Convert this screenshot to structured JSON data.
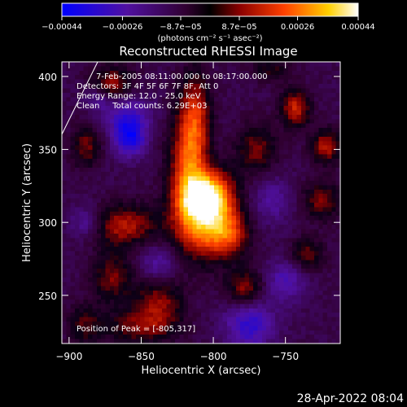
{
  "chart_data": {
    "type": "heatmap",
    "title": "Reconstructed RHESSI Image",
    "xlabel": "Heliocentric X (arcsec)",
    "ylabel": "Heliocentric Y (arcsec)",
    "xlim": [
      -905,
      -712
    ],
    "ylim": [
      217,
      410
    ],
    "xticks": [
      -900,
      -850,
      -800,
      -750
    ],
    "yticks": [
      250,
      300,
      350,
      400
    ],
    "colorbar": {
      "unit": "(photons cm⁻² s⁻¹ asec⁻²)",
      "range": [
        -0.00044,
        0.00044
      ],
      "tick_values": [
        -0.00044,
        -0.00026,
        -8.7e-05,
        8.7e-05,
        0.00026,
        0.00044
      ],
      "tick_labels": [
        "-0.00044",
        "-0.00026",
        "-8.7e-05",
        "8.7e-05",
        "0.00026",
        "0.00044"
      ]
    },
    "annotations": [
      "7-Feb-2005 08:11:00.000 to 08:17:00.000",
      "Detectors: 3F 4F 5F 6F 7F 8F, Att 0",
      "Energy Range: 12.0 - 25.0 keV",
      "Clean     Total counts: 6.29E+03"
    ],
    "peak_label": "Position of Peak = [-805,317]",
    "peak": {
      "x": -805,
      "y": 317
    },
    "hot_spots": [
      {
        "x": -803,
        "y": 318,
        "amp": 0.00044,
        "sx": 12,
        "sy": 12
      },
      {
        "x": -808,
        "y": 300,
        "amp": 0.0003,
        "sx": 14,
        "sy": 18
      },
      {
        "x": -818,
        "y": 340,
        "amp": 0.00028,
        "sx": 9,
        "sy": 28
      },
      {
        "x": -812,
        "y": 372,
        "amp": 0.00022,
        "sx": 7,
        "sy": 22
      },
      {
        "x": -790,
        "y": 292,
        "amp": 0.00025,
        "sx": 11,
        "sy": 11
      },
      {
        "x": -862,
        "y": 298,
        "amp": 0.00024,
        "sx": 16,
        "sy": 10
      },
      {
        "x": -870,
        "y": 262,
        "amp": 0.00018,
        "sx": 10,
        "sy": 12
      },
      {
        "x": -838,
        "y": 245,
        "amp": 0.0002,
        "sx": 12,
        "sy": 12
      },
      {
        "x": -852,
        "y": 228,
        "amp": 0.00017,
        "sx": 18,
        "sy": 8
      },
      {
        "x": -778,
        "y": 255,
        "amp": 0.00021,
        "sx": 9,
        "sy": 9
      },
      {
        "x": -870,
        "y": 395,
        "amp": 0.00022,
        "sx": 10,
        "sy": 8
      },
      {
        "x": -888,
        "y": 352,
        "amp": 0.00018,
        "sx": 7,
        "sy": 10
      },
      {
        "x": -770,
        "y": 350,
        "amp": 0.00018,
        "sx": 10,
        "sy": 12
      },
      {
        "x": -743,
        "y": 378,
        "amp": 0.00026,
        "sx": 7,
        "sy": 9
      },
      {
        "x": -722,
        "y": 352,
        "amp": 0.00024,
        "sx": 7,
        "sy": 8
      },
      {
        "x": -725,
        "y": 315,
        "amp": 0.00019,
        "sx": 9,
        "sy": 9
      },
      {
        "x": -735,
        "y": 278,
        "amp": 0.00017,
        "sx": 8,
        "sy": 8
      },
      {
        "x": -760,
        "y": 405,
        "amp": 0.00012,
        "sx": 10,
        "sy": 6
      },
      {
        "x": -890,
        "y": 230,
        "amp": 0.00014,
        "sx": 8,
        "sy": 10
      }
    ],
    "cold_spots": [
      {
        "x": -858,
        "y": 358,
        "amp": -0.00028,
        "sx": 8,
        "sy": 9
      },
      {
        "x": -860,
        "y": 375,
        "amp": -0.00016,
        "sx": 12,
        "sy": 10
      },
      {
        "x": -775,
        "y": 230,
        "amp": -0.00022,
        "sx": 12,
        "sy": 12
      },
      {
        "x": -750,
        "y": 260,
        "amp": -0.00016,
        "sx": 10,
        "sy": 10
      },
      {
        "x": -888,
        "y": 300,
        "amp": -0.00015,
        "sx": 8,
        "sy": 8
      },
      {
        "x": -838,
        "y": 272,
        "amp": -0.00014,
        "sx": 10,
        "sy": 9
      },
      {
        "x": -760,
        "y": 315,
        "amp": -0.00012,
        "sx": 10,
        "sy": 12
      },
      {
        "x": -880,
        "y": 385,
        "amp": -0.00012,
        "sx": 6,
        "sy": 6
      }
    ]
  },
  "footer": {
    "timestamp": "28-Apr-2022 08:04"
  }
}
